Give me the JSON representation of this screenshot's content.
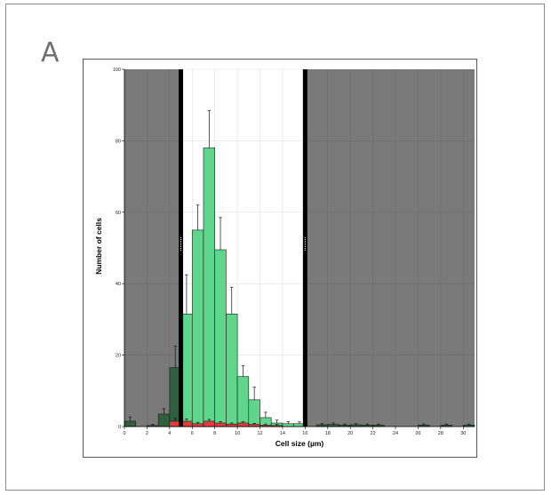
{
  "panel_label": "A",
  "chart_data": {
    "type": "bar",
    "xlabel": "Cell size (µm)",
    "ylabel": "Number of cells",
    "xlim": [
      0,
      31
    ],
    "ylim": [
      0,
      100
    ],
    "x_ticks": [
      0,
      2,
      4,
      6,
      8,
      10,
      12,
      14,
      16,
      18,
      20,
      22,
      24,
      26,
      28,
      30
    ],
    "y_ticks": [
      0,
      20,
      40,
      60,
      80,
      100
    ],
    "bin_width": 1,
    "grid": true,
    "gated_region": [
      5,
      16
    ],
    "gate_line_x": [
      5,
      16
    ],
    "colors": {
      "gated_bar": "#5fd68c",
      "ungated_bar": "#2f5f3e",
      "red_bar": "#e23c3c",
      "shade": "#7a7a7a",
      "gate_line": "#000000"
    },
    "series": [
      {
        "values": [
          {
            "x": 0,
            "y": 1.5,
            "err": 1.2
          },
          {
            "x": 1,
            "y": 0,
            "err": 0
          },
          {
            "x": 2,
            "y": 0.3,
            "err": 0.3
          },
          {
            "x": 3,
            "y": 3.5,
            "err": 1.5
          },
          {
            "x": 4,
            "y": 16.5,
            "err": 6
          },
          {
            "x": 5,
            "y": 31.5,
            "err": 11
          },
          {
            "x": 6,
            "y": 55,
            "err": 7
          },
          {
            "x": 7,
            "y": 78,
            "err": 10.5
          },
          {
            "x": 8,
            "y": 49.5,
            "err": 9
          },
          {
            "x": 9,
            "y": 31.5,
            "err": 7.5
          },
          {
            "x": 10,
            "y": 14,
            "err": 3
          },
          {
            "x": 11,
            "y": 7.5,
            "err": 3.5
          },
          {
            "x": 12,
            "y": 2.5,
            "err": 1.5
          },
          {
            "x": 13,
            "y": 1,
            "err": 0.8
          },
          {
            "x": 14,
            "y": 0.8,
            "err": 0.6
          },
          {
            "x": 15,
            "y": 0.8,
            "err": 0.5
          },
          {
            "x": 17,
            "y": 0.5,
            "err": 0.3
          },
          {
            "x": 18,
            "y": 0.6,
            "err": 0.4
          },
          {
            "x": 19,
            "y": 0.4,
            "err": 0.3
          },
          {
            "x": 20,
            "y": 0.5,
            "err": 0.3
          },
          {
            "x": 21,
            "y": 0.4,
            "err": 0.3
          },
          {
            "x": 22,
            "y": 0.4,
            "err": 0.3
          },
          {
            "x": 26,
            "y": 0.4,
            "err": 0.3
          },
          {
            "x": 28,
            "y": 0.4,
            "err": 0.3
          },
          {
            "x": 30,
            "y": 0.4,
            "err": 0.3
          }
        ]
      },
      {
        "values": [
          {
            "x": 4,
            "y": 1.5,
            "err": 0.8
          },
          {
            "x": 5,
            "y": 1.5,
            "err": 0.6
          },
          {
            "x": 6,
            "y": 0.8,
            "err": 0.4
          },
          {
            "x": 7,
            "y": 1.5,
            "err": 0.5
          },
          {
            "x": 8,
            "y": 1.0,
            "err": 0.4
          },
          {
            "x": 9,
            "y": 0.7,
            "err": 0.3
          },
          {
            "x": 10,
            "y": 1.0,
            "err": 0.4
          },
          {
            "x": 11,
            "y": 0.6,
            "err": 0.3
          },
          {
            "x": 12,
            "y": 0.4,
            "err": 0.3
          },
          {
            "x": 13,
            "y": 0.3,
            "err": 0.3
          }
        ]
      }
    ]
  }
}
